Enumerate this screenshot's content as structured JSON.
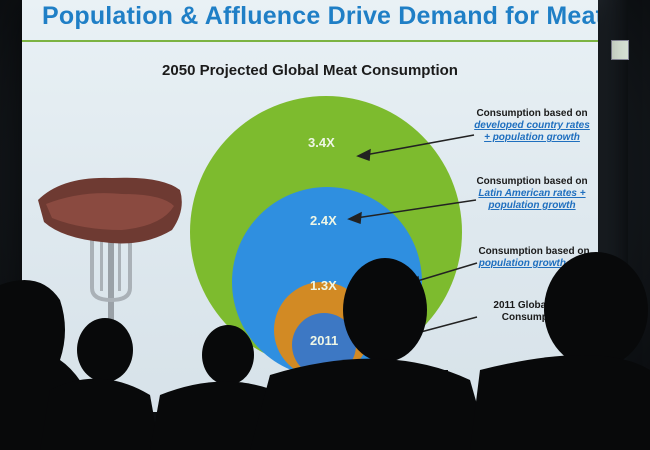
{
  "slide": {
    "title": "Population & Affluence Drive Demand for Meat",
    "chart_title": "2050 Projected Global Meat Consumption"
  },
  "bubbles": [
    {
      "label": "3.4X",
      "color": "#7dbb2e"
    },
    {
      "label": "2.4X",
      "color": "#2f8fe0"
    },
    {
      "label": "1.3X",
      "color": "#d28a24"
    },
    {
      "label": "2011",
      "color": "#3d78c4"
    }
  ],
  "annotations": [
    {
      "plain": "Consumption based on",
      "link": "developed country rates + population growth"
    },
    {
      "plain": "Consumption based on",
      "link": "Latin American rates + population growth"
    },
    {
      "plain": "Consumption based on",
      "link": "population growth only"
    },
    {
      "plain": "2011 Global Meat Consumption",
      "link": ""
    }
  ]
}
